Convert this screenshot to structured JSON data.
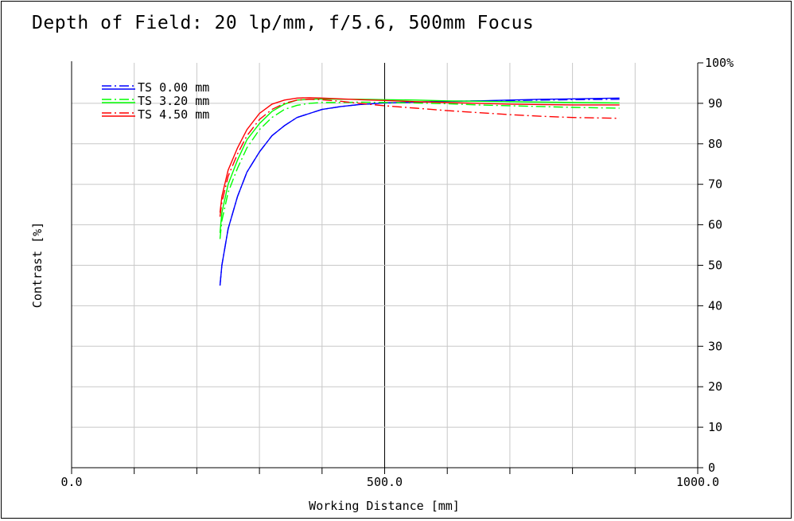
{
  "chart_data": {
    "type": "line",
    "title": "Depth of Field: 20 lp/mm, f/5.6, 500mm Focus",
    "xlabel": "Working Distance [mm]",
    "ylabel": "Contrast [%]",
    "xlim": [
      0,
      1000
    ],
    "ylim": [
      0,
      100
    ],
    "x_ticks": [
      "0.0",
      "500.0",
      "1000.0"
    ],
    "y_ticks": [
      "0",
      "10",
      "20",
      "30",
      "40",
      "50",
      "60",
      "70",
      "80",
      "90",
      "100"
    ],
    "y_unit": "%",
    "grid": true,
    "legend_position": "top-left",
    "series": [
      {
        "name": "TS 0.00 mm",
        "color": "#0000ff",
        "x": [
          237,
          240,
          250,
          265,
          280,
          300,
          320,
          340,
          360,
          380,
          400,
          430,
          460,
          500,
          550,
          600,
          650,
          700,
          750,
          800,
          875
        ],
        "tangential": [
          45,
          50,
          59,
          67,
          73,
          78,
          82,
          84.5,
          86.5,
          87.5,
          88.5,
          89.2,
          89.7,
          90.1,
          90.3,
          90.5,
          90.6,
          90.7,
          90.8,
          90.9,
          91
        ],
        "sagittal": [
          45,
          50,
          59,
          67,
          73,
          78,
          82,
          84.5,
          86.5,
          87.5,
          88.5,
          89.2,
          89.7,
          90.1,
          90.3,
          90.5,
          90.6,
          90.8,
          91,
          91.1,
          91.3
        ]
      },
      {
        "name": "TS 3.20 mm",
        "color": "#00ff00",
        "x": [
          237,
          240,
          250,
          265,
          280,
          300,
          320,
          340,
          360,
          380,
          400,
          430,
          460,
          500,
          550,
          600,
          650,
          700,
          750,
          800,
          875
        ],
        "tangential": [
          56.5,
          61,
          68,
          74,
          79,
          83.5,
          86.5,
          88.5,
          89.5,
          90,
          90.2,
          90.2,
          90.3,
          90.2,
          90.1,
          89.9,
          89.6,
          89.4,
          89.2,
          89,
          88.8
        ],
        "sagittal": [
          58,
          63,
          70,
          76,
          81,
          85,
          88,
          89.8,
          90.8,
          91,
          91.1,
          91,
          91,
          90.9,
          90.8,
          90.6,
          90.5,
          90.4,
          90.3,
          90.2,
          90.1
        ]
      },
      {
        "name": "TS 4.50 mm",
        "color": "#ff0000",
        "x": [
          237,
          240,
          250,
          265,
          280,
          300,
          320,
          340,
          360,
          380,
          400,
          430,
          460,
          500,
          550,
          600,
          650,
          700,
          750,
          800,
          875
        ],
        "tangential": [
          62,
          65.5,
          72,
          77.5,
          82,
          86,
          88.5,
          90,
          90.8,
          91,
          90.9,
          90.5,
          90,
          89.4,
          88.8,
          88.2,
          87.7,
          87.2,
          86.8,
          86.5,
          86.3
        ],
        "sagittal": [
          63,
          67,
          73.5,
          79,
          83.5,
          87.5,
          89.8,
          90.8,
          91.3,
          91.4,
          91.3,
          91.1,
          90.9,
          90.7,
          90.4,
          90.2,
          90,
          89.8,
          89.7,
          89.6,
          89.6
        ]
      }
    ]
  }
}
